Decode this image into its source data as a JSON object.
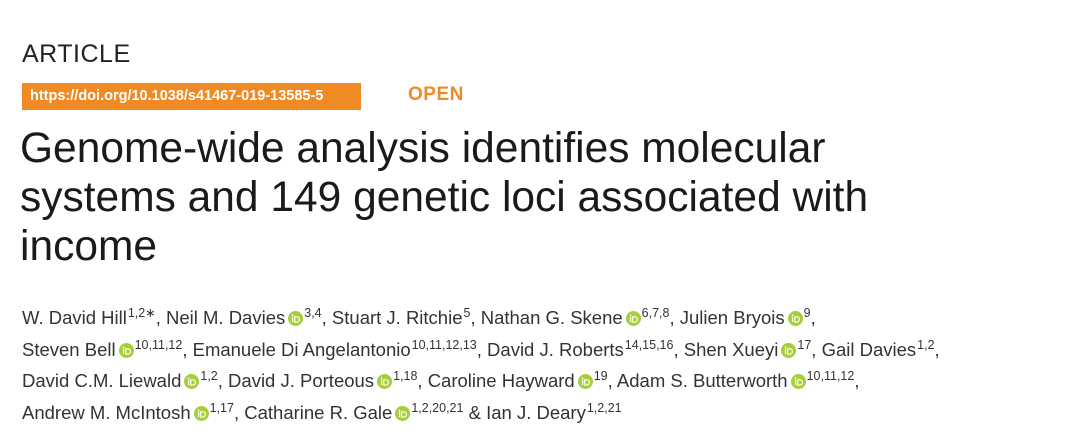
{
  "header": {
    "kind": "ARTICLE",
    "doi": "https://doi.org/10.1038/s41467-019-13585-5",
    "access": "OPEN"
  },
  "title_lines": [
    "Genome-wide analysis identifies molecular",
    "systems and 149 genetic loci associated with",
    "income"
  ],
  "author_lines": [
    [
      {
        "name": "W. David Hill",
        "affil": "1,2∗",
        "sep": ", "
      },
      {
        "name": "Neil M. Davies",
        "orcid": true,
        "affil": "3,4",
        "sep": ", "
      },
      {
        "name": "Stuart J. Ritchie",
        "affil": "5",
        "sep": ", "
      },
      {
        "name": "Nathan G. Skene",
        "orcid": true,
        "affil": "6,7,8",
        "sep": ", "
      },
      {
        "name": "Julien Bryois",
        "orcid": true,
        "affil": "9",
        "sep": ","
      }
    ],
    [
      {
        "name": "Steven Bell",
        "orcid": true,
        "affil": "10,11,12",
        "sep": ", "
      },
      {
        "name": "Emanuele Di Angelantonio",
        "affil": "10,11,12,13",
        "sep": ", "
      },
      {
        "name": "David J. Roberts",
        "affil": "14,15,16",
        "sep": ", "
      },
      {
        "name": "Shen Xueyi",
        "orcid": true,
        "affil": "17",
        "sep": ", "
      },
      {
        "name": "Gail Davies",
        "affil": "1,2",
        "sep": ","
      }
    ],
    [
      {
        "name": "David C.M. Liewald",
        "orcid": true,
        "affil": "1,2",
        "sep": ", "
      },
      {
        "name": "David J. Porteous",
        "orcid": true,
        "affil": "1,18",
        "sep": ", "
      },
      {
        "name": "Caroline Hayward",
        "orcid": true,
        "affil": "19",
        "sep": ", "
      },
      {
        "name": "Adam S. Butterworth",
        "orcid": true,
        "affil": "10,11,12",
        "sep": ","
      }
    ],
    [
      {
        "name": "Andrew M. McIntosh",
        "orcid": true,
        "affil": "1,17",
        "sep": ", "
      },
      {
        "name": "Catharine R. Gale",
        "orcid": true,
        "affil": "1,2,20,21",
        "sep": " & "
      },
      {
        "name": "Ian J. Deary",
        "affil": "1,2,21"
      }
    ]
  ]
}
